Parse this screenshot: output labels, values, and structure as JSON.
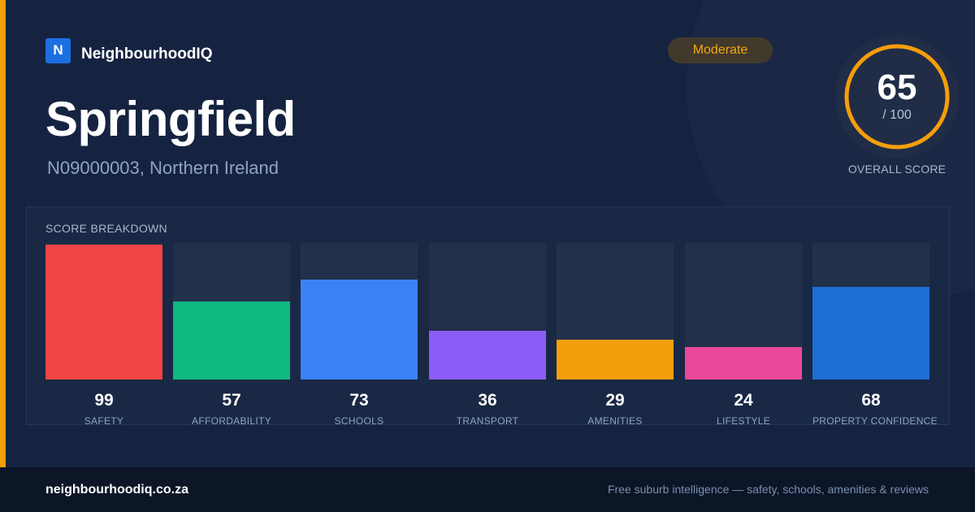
{
  "brand": {
    "logo_letter": "N",
    "name": "NeighbourhoodIQ"
  },
  "area": {
    "name": "Springfield",
    "subtitle": "N09000003, Northern Ireland"
  },
  "rating_badge": {
    "label": "Moderate",
    "color": "#f5a70f"
  },
  "overall": {
    "score": "65",
    "max": "/ 100",
    "label": "OVERALL SCORE",
    "fraction": 0.65,
    "ring_color": "#f59e0b"
  },
  "breakdown": {
    "title": "SCORE BREAKDOWN",
    "items": [
      {
        "label": "SAFETY",
        "value": "99",
        "score": 99,
        "color": "#ef4444"
      },
      {
        "label": "AFFORDABILITY",
        "value": "57",
        "score": 57,
        "color": "#10b981"
      },
      {
        "label": "SCHOOLS",
        "value": "73",
        "score": 73,
        "color": "#3b82f6"
      },
      {
        "label": "TRANSPORT",
        "value": "36",
        "score": 36,
        "color": "#8b5cf6"
      },
      {
        "label": "AMENITIES",
        "value": "29",
        "score": 29,
        "color": "#f59e0b"
      },
      {
        "label": "LIFESTYLE",
        "value": "24",
        "score": 24,
        "color": "#ec4899"
      },
      {
        "label": "PROPERTY CONFIDENCE",
        "value": "68",
        "score": 68,
        "color": "#1d6fd8"
      }
    ]
  },
  "footer": {
    "domain": "neighbourhoodiq.co.za",
    "tagline": "Free suburb intelligence — safety, schools, amenities & reviews"
  }
}
